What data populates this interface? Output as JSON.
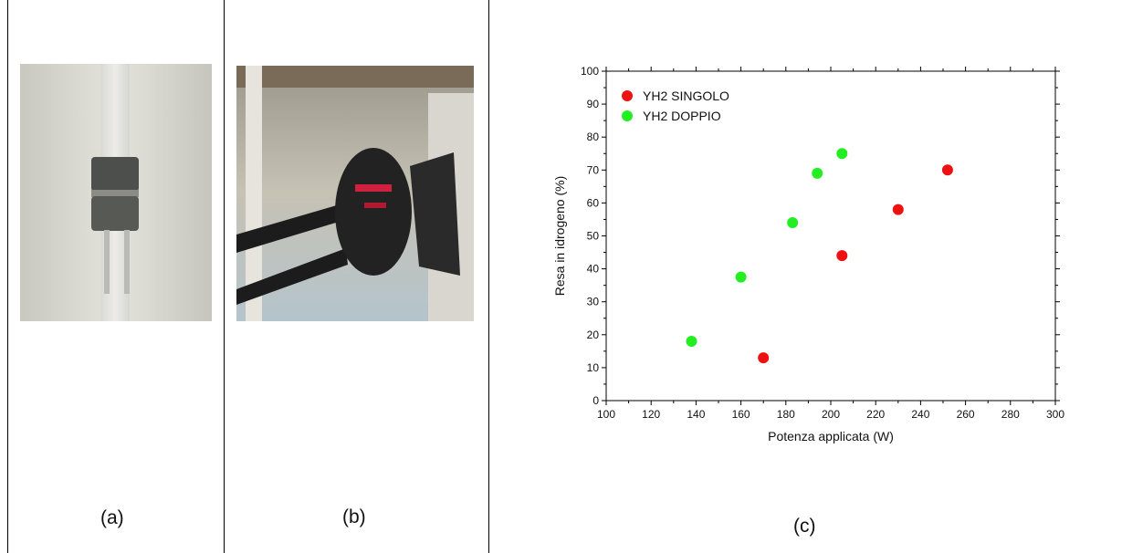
{
  "captions": {
    "a": "(a)",
    "b": "(b)",
    "c": "(c)"
  },
  "colors": {
    "singolo": "#ee1111",
    "doppio": "#22ee22"
  },
  "chart_data": {
    "type": "scatter",
    "xlabel": "Potenza applicata (W)",
    "ylabel": "Resa in idrogeno (%)",
    "xlim": [
      100,
      300
    ],
    "ylim": [
      0,
      100
    ],
    "xticks": [
      100,
      120,
      140,
      160,
      180,
      200,
      220,
      240,
      260,
      280,
      300
    ],
    "yticks": [
      0,
      10,
      20,
      30,
      40,
      50,
      60,
      70,
      80,
      90,
      100
    ],
    "legend_position": "top-left",
    "grid": false,
    "series": [
      {
        "name": "YH2 SINGOLO",
        "color": "#ee1111",
        "points": [
          [
            170,
            13
          ],
          [
            205,
            44
          ],
          [
            230,
            58
          ],
          [
            252,
            70
          ]
        ]
      },
      {
        "name": "YH2 DOPPIO",
        "color": "#22ee22",
        "points": [
          [
            138,
            18
          ],
          [
            160,
            37.5
          ],
          [
            183,
            54
          ],
          [
            194,
            69
          ],
          [
            205,
            75
          ]
        ]
      }
    ]
  }
}
